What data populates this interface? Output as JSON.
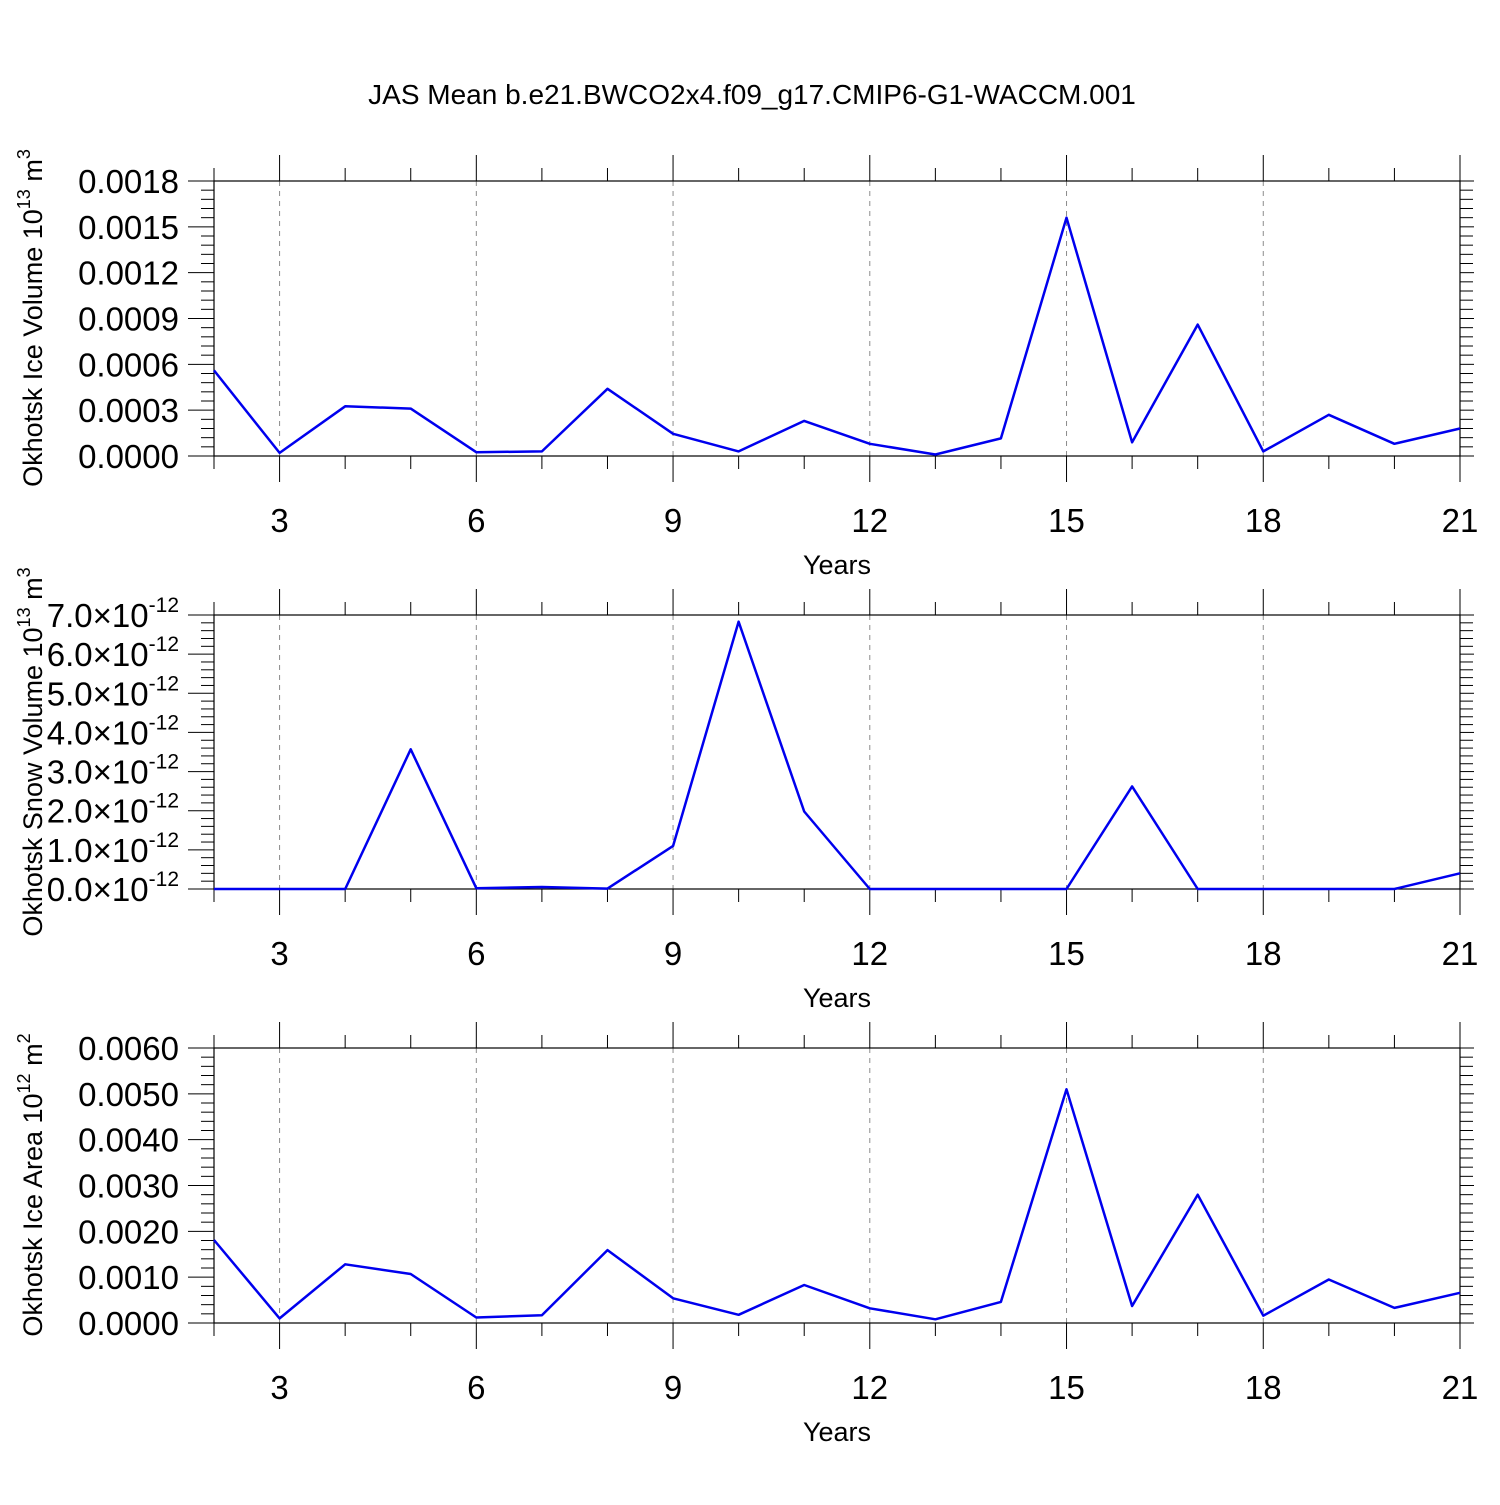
{
  "figure": {
    "title": "JAS Mean b.e21.BWCO2x4.f09_g17.CMIP6-G1-WACCM.001"
  },
  "chart_data": [
    {
      "type": "line",
      "xlabel": "Years",
      "ylabel": {
        "text": "Okhotsk Ice Volume 10",
        "exp": "13",
        "unit": "m",
        "unit_exp": "3"
      },
      "xlim": [
        2,
        21
      ],
      "ylim": [
        0,
        0.0018
      ],
      "xticks": [
        3,
        6,
        9,
        12,
        15,
        18,
        21
      ],
      "yticks": [
        {
          "value": 0.0,
          "label": "0.0000"
        },
        {
          "value": 0.0003,
          "label": "0.0003"
        },
        {
          "value": 0.0006,
          "label": "0.0006"
        },
        {
          "value": 0.0009,
          "label": "0.0009"
        },
        {
          "value": 0.0012,
          "label": "0.0012"
        },
        {
          "value": 0.0015,
          "label": "0.0015"
        },
        {
          "value": 0.0018,
          "label": "0.0018"
        }
      ],
      "grid": "vertical-dashed",
      "color": "#0000ee",
      "series": [
        {
          "x": [
            2,
            3,
            4,
            5,
            6,
            7,
            8,
            9,
            10,
            11,
            12,
            13,
            14,
            15,
            16,
            17,
            18,
            19,
            20,
            21
          ],
          "y": [
            0.00056,
            2e-05,
            0.000325,
            0.00031,
            2.5e-05,
            3e-05,
            0.00044,
            0.000145,
            3e-05,
            0.00023,
            8e-05,
            1e-05,
            0.000115,
            0.00156,
            9e-05,
            0.00086,
            3e-05,
            0.00027,
            8e-05,
            0.00018
          ]
        }
      ]
    },
    {
      "type": "line",
      "xlabel": "Years",
      "ylabel": {
        "text": "Okhotsk Snow Volume 10",
        "exp": "13",
        "unit": "m",
        "unit_exp": "3"
      },
      "xlim": [
        2,
        21
      ],
      "ylim": [
        0,
        7e-12
      ],
      "xticks": [
        3,
        6,
        9,
        12,
        15,
        18,
        21
      ],
      "yticks": [
        {
          "value": 0.0,
          "label": "0.0",
          "times": "×10",
          "exp": "-12"
        },
        {
          "value": 1e-12,
          "label": "1.0",
          "times": "×10",
          "exp": "-12"
        },
        {
          "value": 2e-12,
          "label": "2.0",
          "times": "×10",
          "exp": "-12"
        },
        {
          "value": 3e-12,
          "label": "3.0",
          "times": "×10",
          "exp": "-12"
        },
        {
          "value": 4e-12,
          "label": "4.0",
          "times": "×10",
          "exp": "-12"
        },
        {
          "value": 5e-12,
          "label": "5.0",
          "times": "×10",
          "exp": "-12"
        },
        {
          "value": 6e-12,
          "label": "6.0",
          "times": "×10",
          "exp": "-12"
        },
        {
          "value": 7e-12,
          "label": "7.0",
          "times": "×10",
          "exp": "-12"
        }
      ],
      "grid": "vertical-dashed",
      "color": "#0000ee",
      "series": [
        {
          "x": [
            2,
            3,
            4,
            5,
            6,
            7,
            8,
            9,
            10,
            11,
            12,
            13,
            14,
            15,
            16,
            17,
            18,
            19,
            20,
            21
          ],
          "y": [
            0,
            0,
            0,
            3.57e-12,
            2e-14,
            5e-14,
            1e-14,
            1.1e-12,
            6.83e-12,
            1.98e-12,
            0,
            0,
            0,
            0,
            2.62e-12,
            0,
            0,
            0,
            0,
            4e-13
          ]
        }
      ]
    },
    {
      "type": "line",
      "xlabel": "Years",
      "ylabel": {
        "text": "Okhotsk Ice Area 10",
        "exp": "12",
        "unit": "m",
        "unit_exp": "2"
      },
      "xlim": [
        2,
        21
      ],
      "ylim": [
        0,
        0.006
      ],
      "xticks": [
        3,
        6,
        9,
        12,
        15,
        18,
        21
      ],
      "yticks": [
        {
          "value": 0.0,
          "label": "0.0000"
        },
        {
          "value": 0.001,
          "label": "0.0010"
        },
        {
          "value": 0.002,
          "label": "0.0020"
        },
        {
          "value": 0.003,
          "label": "0.0030"
        },
        {
          "value": 0.004,
          "label": "0.0040"
        },
        {
          "value": 0.005,
          "label": "0.0050"
        },
        {
          "value": 0.006,
          "label": "0.0060"
        }
      ],
      "grid": "vertical-dashed",
      "color": "#0000ee",
      "series": [
        {
          "x": [
            2,
            3,
            4,
            5,
            6,
            7,
            8,
            9,
            10,
            11,
            12,
            13,
            14,
            15,
            16,
            17,
            18,
            19,
            20,
            21
          ],
          "y": [
            0.00181,
            0.0001,
            0.00128,
            0.00107,
            0.00012,
            0.00017,
            0.00159,
            0.00054,
            0.00018,
            0.00083,
            0.00032,
            8e-05,
            0.00046,
            0.0051,
            0.00037,
            0.0028,
            0.00016,
            0.00095,
            0.00033,
            0.00066
          ]
        }
      ]
    }
  ]
}
